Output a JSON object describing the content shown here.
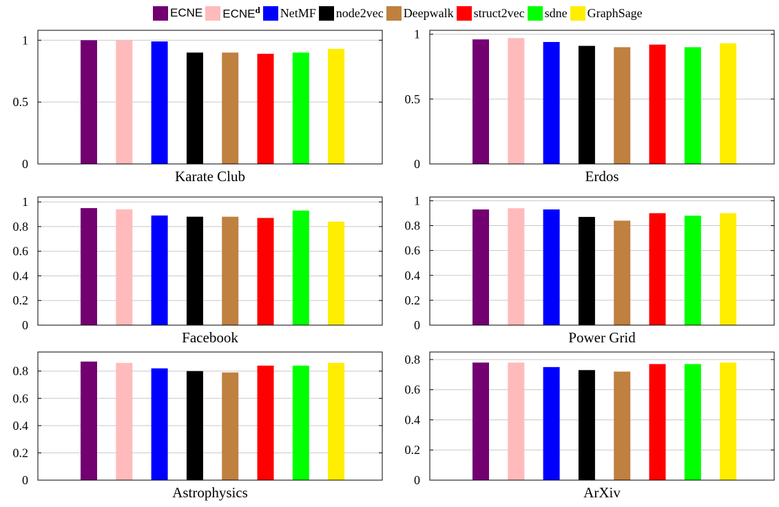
{
  "legend": [
    {
      "name": "ECNE",
      "sup": "",
      "color": "#730071",
      "sans": true
    },
    {
      "name": "ECNE",
      "sup": "d",
      "color": "#ffbbbb",
      "sans": true
    },
    {
      "name": "NetMF",
      "sup": "",
      "color": "#0000ff",
      "sans": false
    },
    {
      "name": "node2vec",
      "sup": "",
      "color": "#000000",
      "sans": false
    },
    {
      "name": "Deepwalk",
      "sup": "",
      "color": "#bf8040",
      "sans": false
    },
    {
      "name": "struct2vec",
      "sup": "",
      "color": "#ff0000",
      "sans": false
    },
    {
      "name": "sdne",
      "sup": "",
      "color": "#00ff00",
      "sans": false
    },
    {
      "name": "GraphSage",
      "sup": "",
      "color": "#ffee00",
      "sans": false
    }
  ],
  "chart_data": [
    {
      "type": "bar",
      "title": "Karate Club",
      "categories": [
        "ECNE",
        "ECNEd",
        "NetMF",
        "node2vec",
        "Deepwalk",
        "struct2vec",
        "sdne",
        "GraphSage"
      ],
      "values": [
        1.0,
        1.0,
        0.99,
        0.9,
        0.9,
        0.89,
        0.9,
        0.93
      ],
      "ylim": [
        0,
        1.08
      ],
      "yticks": [
        0,
        0.5,
        1
      ],
      "ytick_labels": [
        "0",
        "0.5",
        "1"
      ],
      "grid": true
    },
    {
      "type": "bar",
      "title": "Erdos",
      "categories": [
        "ECNE",
        "ECNEd",
        "NetMF",
        "node2vec",
        "Deepwalk",
        "struct2vec",
        "sdne",
        "GraphSage"
      ],
      "values": [
        0.96,
        0.97,
        0.94,
        0.91,
        0.9,
        0.92,
        0.9,
        0.93
      ],
      "ylim": [
        0,
        1.03
      ],
      "yticks": [
        0,
        0.5,
        1
      ],
      "ytick_labels": [
        "0",
        "0.5",
        "1"
      ],
      "grid": true
    },
    {
      "type": "bar",
      "title": "Facebook",
      "categories": [
        "ECNE",
        "ECNEd",
        "NetMF",
        "node2vec",
        "Deepwalk",
        "struct2vec",
        "sdne",
        "GraphSage"
      ],
      "values": [
        0.95,
        0.94,
        0.89,
        0.88,
        0.88,
        0.87,
        0.93,
        0.84
      ],
      "ylim": [
        0,
        1.04
      ],
      "yticks": [
        0,
        0.2,
        0.4,
        0.6,
        0.8,
        1
      ],
      "ytick_labels": [
        "0",
        "0.2",
        "0.4",
        "0.6",
        "0.8",
        "1"
      ],
      "grid": true
    },
    {
      "type": "bar",
      "title": "Power Grid",
      "categories": [
        "ECNE",
        "ECNEd",
        "NetMF",
        "node2vec",
        "Deepwalk",
        "struct2vec",
        "sdne",
        "GraphSage"
      ],
      "values": [
        0.93,
        0.94,
        0.93,
        0.87,
        0.84,
        0.9,
        0.88,
        0.9
      ],
      "ylim": [
        0,
        1.03
      ],
      "yticks": [
        0,
        0.2,
        0.4,
        0.6,
        0.8,
        1
      ],
      "ytick_labels": [
        "0",
        "0.2",
        "0.4",
        "0.6",
        "0.8",
        "1"
      ],
      "grid": true
    },
    {
      "type": "bar",
      "title": "Astrophysics",
      "categories": [
        "ECNE",
        "ECNEd",
        "NetMF",
        "node2vec",
        "Deepwalk",
        "struct2vec",
        "sdne",
        "GraphSage"
      ],
      "values": [
        0.87,
        0.86,
        0.82,
        0.8,
        0.79,
        0.84,
        0.84,
        0.86
      ],
      "ylim": [
        0,
        0.94
      ],
      "yticks": [
        0,
        0.2,
        0.4,
        0.6,
        0.8
      ],
      "ytick_labels": [
        "0",
        "0.2",
        "0.4",
        "0.6",
        "0.8"
      ],
      "grid": true
    },
    {
      "type": "bar",
      "title": "ArXiv",
      "categories": [
        "ECNE",
        "ECNEd",
        "NetMF",
        "node2vec",
        "Deepwalk",
        "struct2vec",
        "sdne",
        "GraphSage"
      ],
      "values": [
        0.78,
        0.78,
        0.75,
        0.73,
        0.72,
        0.77,
        0.77,
        0.78
      ],
      "ylim": [
        0,
        0.85
      ],
      "yticks": [
        0,
        0.2,
        0.4,
        0.6,
        0.8
      ],
      "ytick_labels": [
        "0",
        "0.2",
        "0.4",
        "0.6",
        "0.8"
      ],
      "grid": true
    }
  ]
}
